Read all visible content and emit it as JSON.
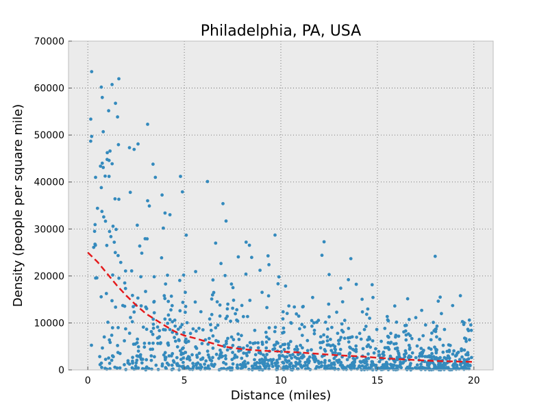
{
  "chart_data": {
    "type": "scatter",
    "title": "Philadelphia, PA, USA",
    "xlabel": "Distance (miles)",
    "ylabel": "Density (people per square mile)",
    "xlim": [
      -1,
      21
    ],
    "ylim": [
      0,
      70000
    ],
    "xticks": [
      0,
      5,
      10,
      15,
      20
    ],
    "yticks": [
      0,
      10000,
      20000,
      30000,
      40000,
      50000,
      60000,
      70000
    ],
    "grid": true,
    "colors": {
      "background": "#ebebeb",
      "points": "#348abd",
      "fit": "#e41a1c"
    },
    "notable_points": [
      [
        0.2,
        63500
      ],
      [
        0.7,
        60200
      ],
      [
        0.75,
        58000
      ],
      [
        3.1,
        52300
      ],
      [
        0.8,
        50700
      ],
      [
        0.2,
        49700
      ],
      [
        0.15,
        48700
      ],
      [
        2.6,
        48100
      ],
      [
        1.15,
        46600
      ],
      [
        1.0,
        44800
      ],
      [
        1.1,
        44600
      ],
      [
        0.75,
        44000
      ],
      [
        0.8,
        43100
      ],
      [
        1.1,
        41200
      ],
      [
        3.5,
        41000
      ],
      [
        4.8,
        41200
      ],
      [
        0.4,
        41000
      ],
      [
        6.2,
        40100
      ],
      [
        0.7,
        38800
      ],
      [
        2.2,
        37800
      ],
      [
        4.9,
        37900
      ],
      [
        3.1,
        36000
      ],
      [
        7.0,
        35400
      ],
      [
        0.5,
        34400
      ],
      [
        4.0,
        33400
      ],
      [
        9.7,
        28700
      ],
      [
        8.2,
        27200
      ],
      [
        12.5,
        20300
      ],
      [
        13.5,
        19200
      ],
      [
        9.9,
        19800
      ],
      [
        13.1,
        17400
      ],
      [
        13.2,
        14500
      ],
      [
        15.9,
        13600
      ],
      [
        18.9,
        13700
      ],
      [
        19.3,
        15800
      ],
      [
        17.9,
        10100
      ],
      [
        16.5,
        9500
      ],
      [
        10.7,
        13400
      ],
      [
        11.6,
        10500
      ],
      [
        14.6,
        11000
      ]
    ],
    "fit_line": {
      "x": [
        0,
        0.5,
        1,
        1.5,
        2,
        2.5,
        3,
        3.5,
        4,
        4.5,
        5,
        5.5,
        6,
        6.5,
        7,
        7.5,
        8,
        9,
        10,
        11,
        12,
        13,
        14,
        15,
        16,
        17,
        18,
        19,
        20
      ],
      "y": [
        25000,
        23000,
        20500,
        18000,
        15800,
        13800,
        12000,
        10700,
        9400,
        8200,
        7300,
        6800,
        6200,
        5600,
        5000,
        4700,
        4400,
        4100,
        3900,
        3700,
        3400,
        3100,
        2900,
        2600,
        2300,
        2100,
        1900,
        1800,
        1700
      ]
    }
  }
}
